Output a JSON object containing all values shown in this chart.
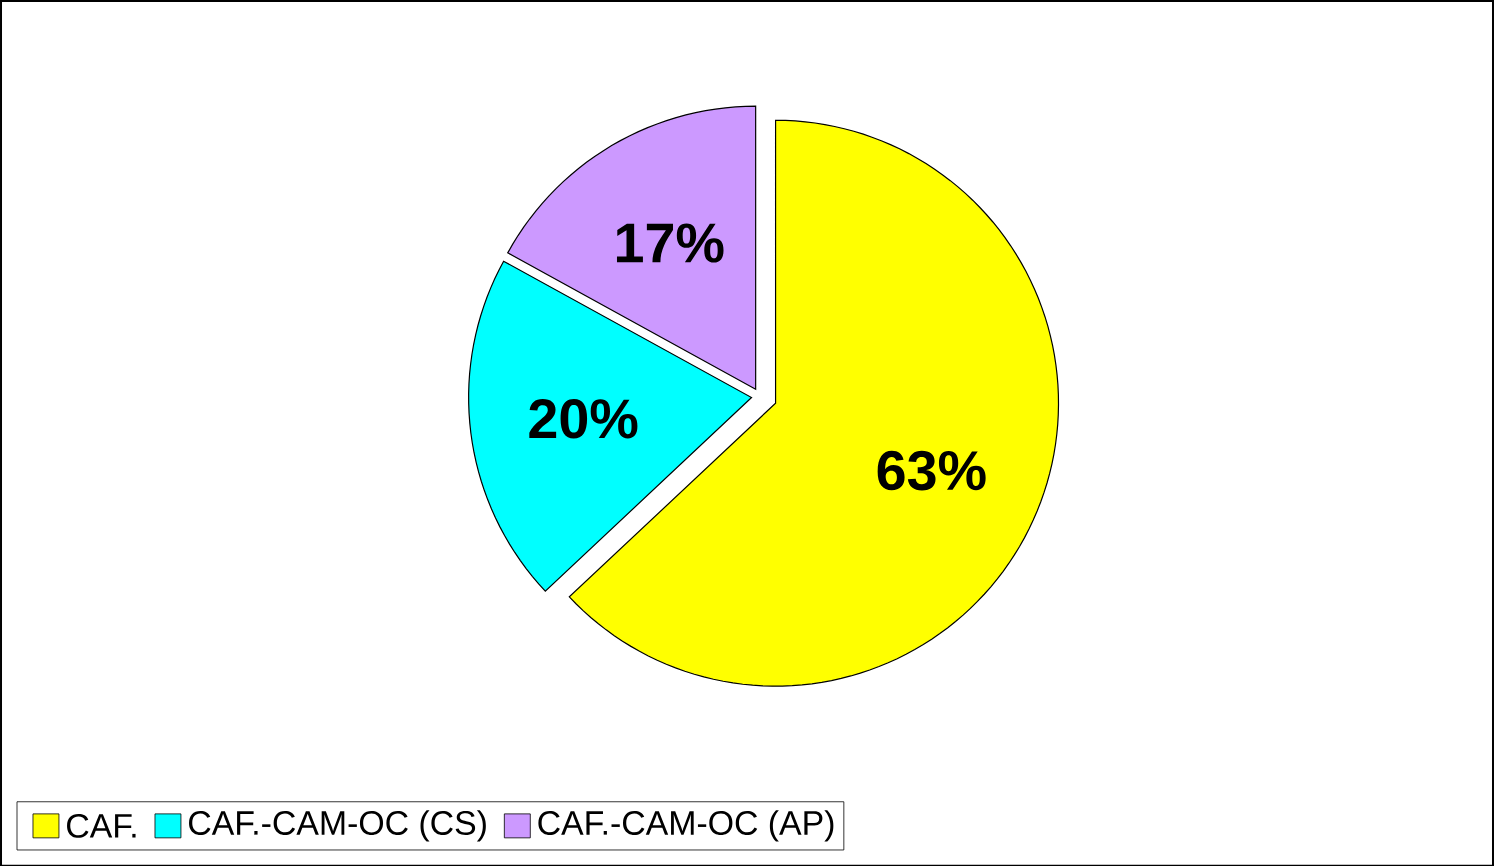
{
  "chart_data": {
    "type": "pie",
    "categories": [
      "CAF.",
      "CAF.-CAM-OC (CS)",
      "CAF.-CAM-OC (AP)"
    ],
    "values": [
      63,
      20,
      17
    ],
    "value_labels": [
      "63%",
      "20%",
      "17%"
    ],
    "colors": [
      "#ffff00",
      "#00ffff",
      "#cc99ff"
    ],
    "legend": "bottom"
  }
}
